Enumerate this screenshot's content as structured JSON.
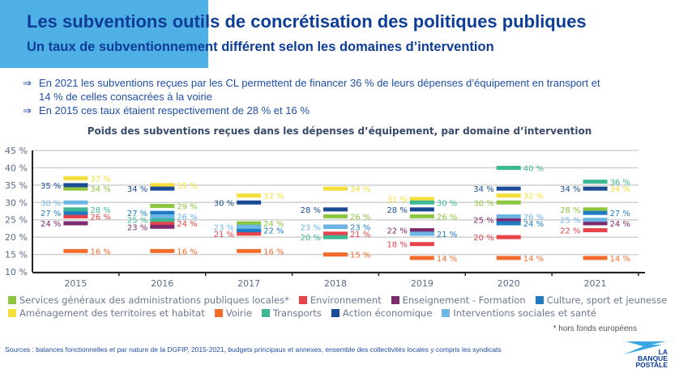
{
  "header": {
    "title": "Les subventions outils de concrétisation des politiques publiques",
    "subtitle": "Un taux de subventionnement différent selon les domaines d’intervention"
  },
  "bullets": [
    {
      "arrow": "⇒",
      "text": "En 2021 les subventions reçues par les CL permettent de financer 36 % de leurs dépenses d’équipement en transport et",
      "cont": "14 % de celles consacrées à la voirie"
    },
    {
      "arrow": "⇒",
      "text": "En 2015 ces taux étaient respectivement de 28 % et 16 %"
    }
  ],
  "chart_data": {
    "type": "scatter",
    "title": "Poids des subventions reçues dans les dépenses d’équipement, par domaine d’intervention",
    "categories": [
      "2015",
      "2016",
      "2017",
      "2018",
      "2019",
      "2020",
      "2021"
    ],
    "ylim": [
      10,
      45
    ],
    "yticks": [
      "10 %",
      "15 %",
      "20 %",
      "25 %",
      "30 %",
      "35 %",
      "40 %",
      "45 %"
    ],
    "grid": true,
    "legend_placement": "bottom",
    "series": [
      {
        "name": "Services généraux des administrations publiques locales*",
        "color": "#8dc63f",
        "values": [
          34,
          29,
          24,
          26,
          26,
          30,
          28
        ]
      },
      {
        "name": "Environnement",
        "color": "#e8434a",
        "values": [
          26,
          24,
          21,
          21,
          18,
          20,
          22
        ]
      },
      {
        "name": "Enseignement - Formation",
        "color": "#7d2a6e",
        "values": [
          24,
          23,
          22,
          23,
          22,
          25,
          24
        ]
      },
      {
        "name": "Culture, sport et jeunesse",
        "color": "#1f7bc4",
        "values": [
          27,
          27,
          22,
          23,
          21,
          24,
          27
        ]
      },
      {
        "name": "Aménagement des territoires et habitat",
        "color": "#f4df3a",
        "values": [
          37,
          35,
          32,
          34,
          31,
          32,
          34
        ]
      },
      {
        "name": "Voirie",
        "color": "#f26d2c",
        "values": [
          16,
          16,
          16,
          15,
          14,
          14,
          14
        ]
      },
      {
        "name": "Transports",
        "color": "#3cb895",
        "values": [
          28,
          25,
          23,
          20,
          30,
          40,
          36
        ]
      },
      {
        "name": "Action économique",
        "color": "#1a4b94",
        "values": [
          35,
          34,
          30,
          28,
          28,
          34,
          34
        ]
      },
      {
        "name": "Interventions sociales et santé",
        "color": "#6cb6e6",
        "values": [
          30,
          26,
          23,
          23,
          21,
          26,
          25
        ]
      }
    ]
  },
  "note": "* hors fonds européens",
  "sources": "Sources : balances fonctionnelles et par nature de la DGFIP, 2015-2021, budgets principaux et annexes, ensemble des collectivités locales y compris les syndicats",
  "logo": {
    "line1": "LA",
    "line2": "BANQUE",
    "line3": "POSTALE"
  }
}
